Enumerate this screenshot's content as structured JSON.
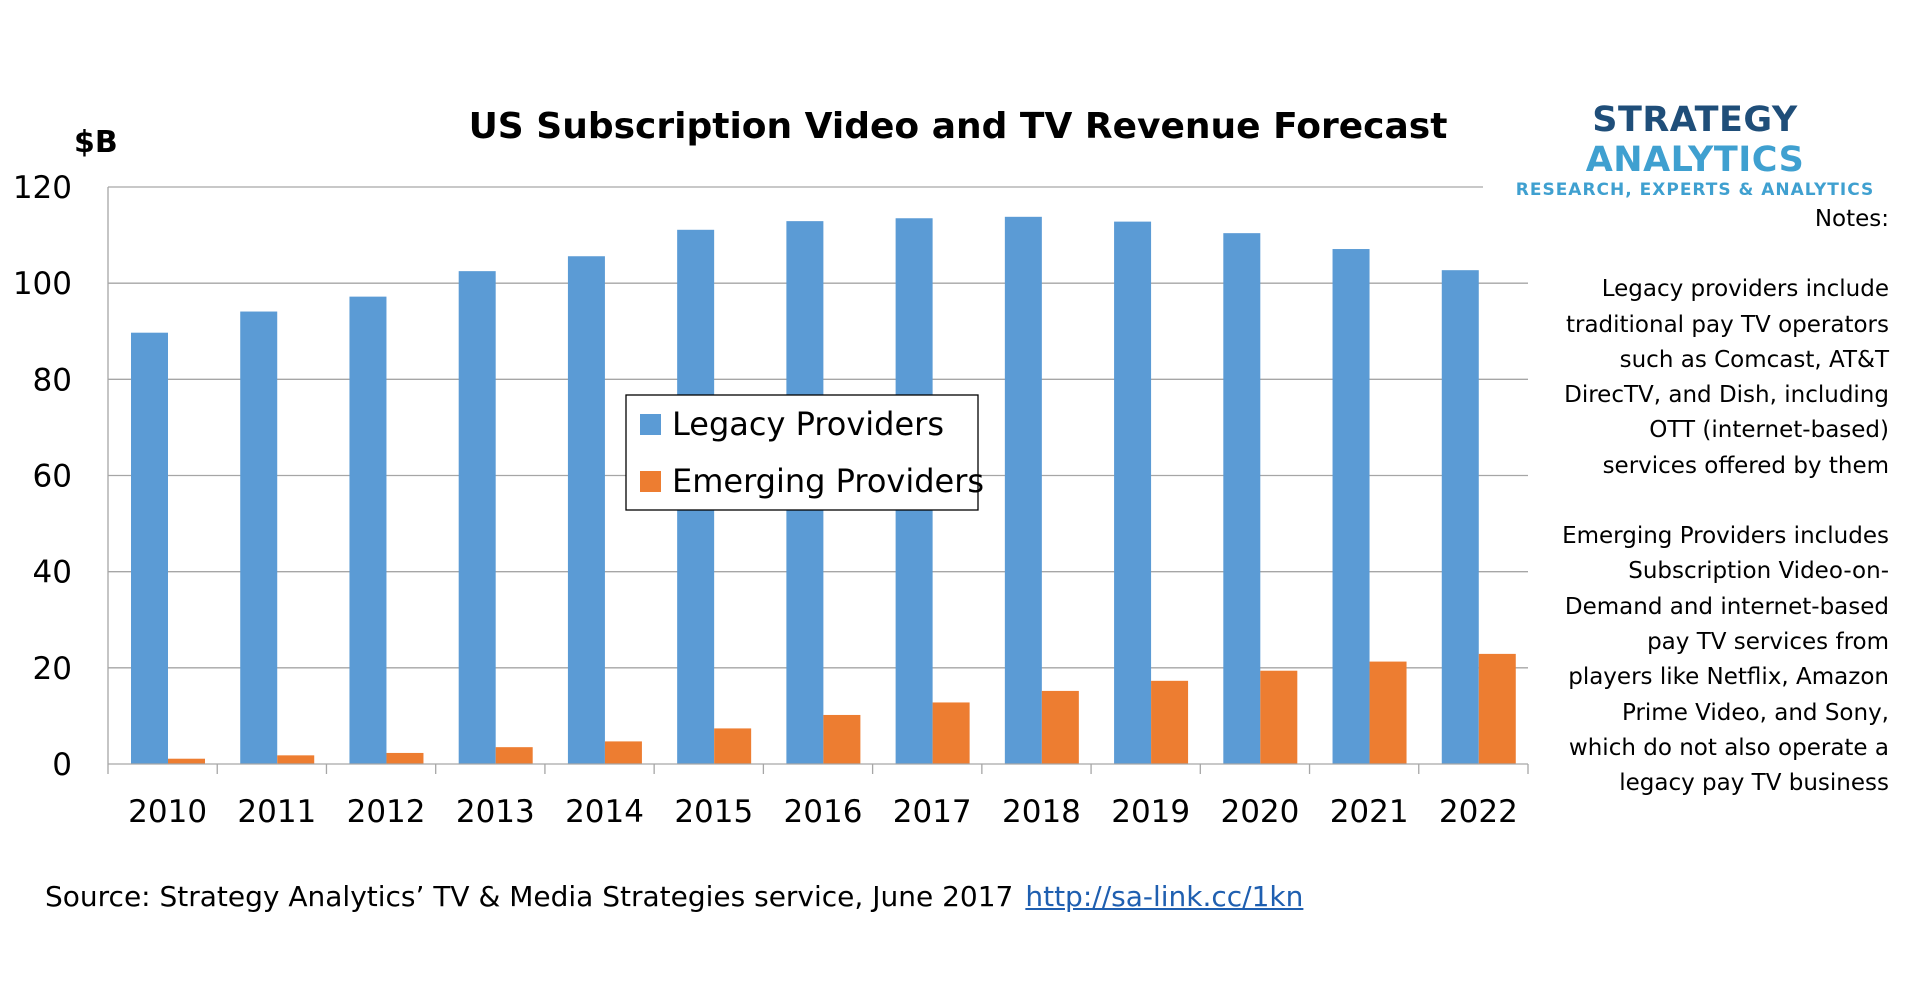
{
  "chart_data": {
    "type": "bar",
    "title": "US Subscription Video and TV Revenue Forecast",
    "ylabel": "$B",
    "xlabel": "",
    "ylim": [
      0,
      120
    ],
    "yticks": [
      "0",
      "20",
      "40",
      "60",
      "80",
      "100",
      "120"
    ],
    "grid": true,
    "legend_position": "center",
    "categories": [
      "2010",
      "2011",
      "2012",
      "2013",
      "2014",
      "2015",
      "2016",
      "2017",
      "2018",
      "2019",
      "2020",
      "2021",
      "2022"
    ],
    "series": [
      {
        "name": "Legacy Providers",
        "color": "#5b9bd5",
        "values": [
          89.7,
          94.1,
          97.2,
          102.5,
          105.6,
          111.1,
          112.9,
          113.5,
          113.8,
          112.8,
          110.4,
          107.1,
          102.7
        ]
      },
      {
        "name": "Emerging Providers",
        "color": "#ed7d31",
        "values": [
          1.1,
          1.8,
          2.3,
          3.5,
          4.7,
          7.4,
          10.2,
          12.8,
          15.2,
          17.3,
          19.4,
          21.3,
          22.9
        ]
      }
    ]
  },
  "logo": {
    "word1": "STRATEGY",
    "word2": "ANALYTICS",
    "tagline": "RESEARCH, EXPERTS & ANALYTICS"
  },
  "notes": {
    "heading": "Notes:",
    "legacy": "Legacy providers include traditional pay TV operators such as Comcast, AT&T DirecTV, and Dish, including OTT (internet-based) services offered by them",
    "emerging": "Emerging Providers includes Subscription Video-on-Demand and internet-based pay TV services from players like Netflix, Amazon Prime Video, and Sony, which do not also operate a legacy pay TV business"
  },
  "source": {
    "text": "Source: Strategy Analytics’ TV & Media Strategies service, June 2017",
    "link": "http://sa-link.cc/1kn"
  }
}
